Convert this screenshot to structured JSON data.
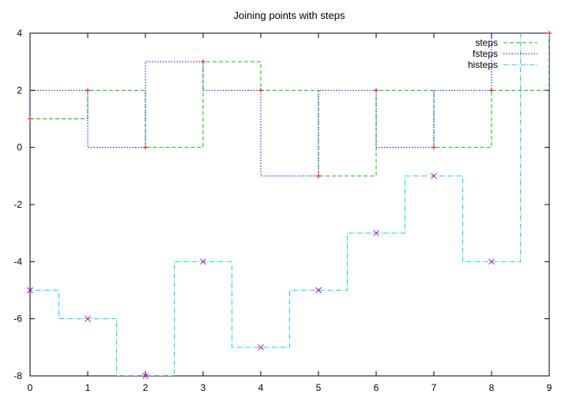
{
  "chart_data": {
    "type": "line",
    "title": "Joining points with steps",
    "xlabel": "",
    "ylabel": "",
    "xlim": [
      0,
      9
    ],
    "ylim": [
      -8,
      4
    ],
    "x_ticks": [
      0,
      1,
      2,
      3,
      4,
      5,
      6,
      7,
      8,
      9
    ],
    "y_ticks": [
      4,
      2,
      0,
      -2,
      -4,
      -6,
      -8
    ],
    "grid": false,
    "legend_position": "top-right",
    "series": [
      {
        "name": "steps",
        "style": "steps",
        "color": "#00c000",
        "dash": "dashed",
        "x": [
          0,
          1,
          2,
          3,
          4,
          5,
          6,
          7,
          8,
          9
        ],
        "y": [
          1,
          2,
          0,
          3,
          2,
          -1,
          2,
          0,
          2,
          4
        ]
      },
      {
        "name": "fsteps",
        "style": "fsteps",
        "color": "#0000ff",
        "dash": "dotted",
        "x": [
          0,
          1,
          2,
          3,
          4,
          5,
          6,
          7,
          8,
          9
        ],
        "y": [
          1,
          2,
          0,
          3,
          2,
          -1,
          2,
          0,
          2,
          4
        ]
      },
      {
        "name": "histeps",
        "style": "histeps",
        "color": "#00d8e8",
        "dash": "dashdot",
        "x": [
          0,
          1,
          2,
          3,
          4,
          5,
          6,
          7,
          8
        ],
        "y": [
          -5,
          -6,
          -8,
          -4,
          -7,
          -5,
          -3,
          -1,
          -4
        ]
      }
    ],
    "point_markers": [
      {
        "marker": "+",
        "color": "#ff0000",
        "x": [
          0,
          1,
          2,
          3,
          4,
          5,
          6,
          7,
          8,
          9
        ],
        "y": [
          1,
          2,
          0,
          3,
          2,
          -1,
          2,
          0,
          2,
          4
        ]
      },
      {
        "marker": "x",
        "color": "#d000d0",
        "x": [
          0,
          1,
          2,
          3,
          4,
          5,
          6,
          7,
          8
        ],
        "y": [
          -5,
          -6,
          -8,
          -4,
          -7,
          -5,
          -3,
          -1,
          -4
        ]
      }
    ]
  }
}
